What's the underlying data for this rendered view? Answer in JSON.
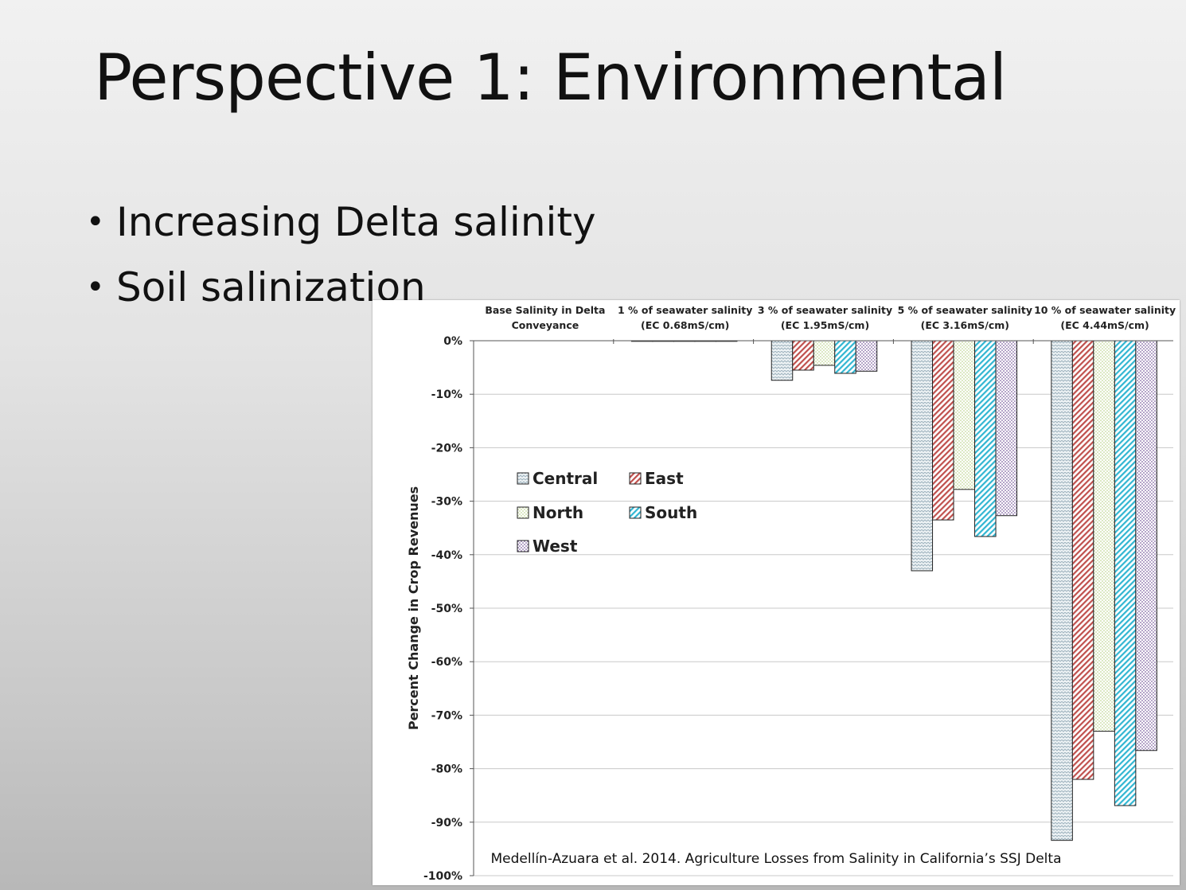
{
  "slide": {
    "title": "Perspective 1: Environmental",
    "bullets": [
      "Increasing Delta salinity",
      "Soil salinization"
    ]
  },
  "citation": "Medellín-Azuara et al. 2014. Agriculture Losses from Salinity in California’s SSJ Delta",
  "chart_data": {
    "type": "bar",
    "title": "",
    "xlabel": "",
    "ylabel": "Percent Change in Crop Revenues",
    "ylim": [
      -100,
      0
    ],
    "y_ticks": [
      0,
      -10,
      -20,
      -30,
      -40,
      -50,
      -60,
      -70,
      -80,
      -90,
      -100
    ],
    "y_tick_labels": [
      "0%",
      "-10%",
      "-20%",
      "-30%",
      "-40%",
      "-50%",
      "-60%",
      "-70%",
      "-80%",
      "-90%",
      "-100%"
    ],
    "x_axis_position": "top",
    "grid": true,
    "legend_position": "upper-left",
    "categories": [
      [
        "Base Salinity in Delta",
        "Conveyance"
      ],
      [
        "1 % of seawater salinity",
        "(EC 0.68mS/cm)"
      ],
      [
        "3 % of seawater salinity",
        "(EC 1.95mS/cm)"
      ],
      [
        "5 % of seawater salinity",
        "(EC 3.16mS/cm)"
      ],
      [
        "10 % of seawater salinity",
        "(EC 4.44mS/cm)"
      ]
    ],
    "series": [
      {
        "name": "Central",
        "pattern": "zigzag",
        "color": "#9fb3bf",
        "fill_bg": "#eef3f5",
        "values": [
          0,
          -0.1,
          -7.4,
          -43,
          -93.4
        ]
      },
      {
        "name": "East",
        "pattern": "diagonal-hatch",
        "color": "#c0504d",
        "fill_bg": "#ffffff",
        "values": [
          0,
          -0.1,
          -5.5,
          -33.5,
          -82
        ]
      },
      {
        "name": "North",
        "pattern": "dots",
        "color": "#c4d79b",
        "fill_bg": "#ffffff",
        "values": [
          0,
          -0.1,
          -4.6,
          -27.8,
          -73
        ]
      },
      {
        "name": "South",
        "pattern": "diagonal-hatch",
        "color": "#31b6d2",
        "fill_bg": "#ffffff",
        "values": [
          0,
          -0.1,
          -6.1,
          -36.6,
          -86.9
        ]
      },
      {
        "name": "West",
        "pattern": "dots",
        "color": "#8064a2",
        "fill_bg": "#ffffff",
        "values": [
          0,
          -0.1,
          -5.7,
          -32.7,
          -76.6
        ]
      }
    ]
  }
}
